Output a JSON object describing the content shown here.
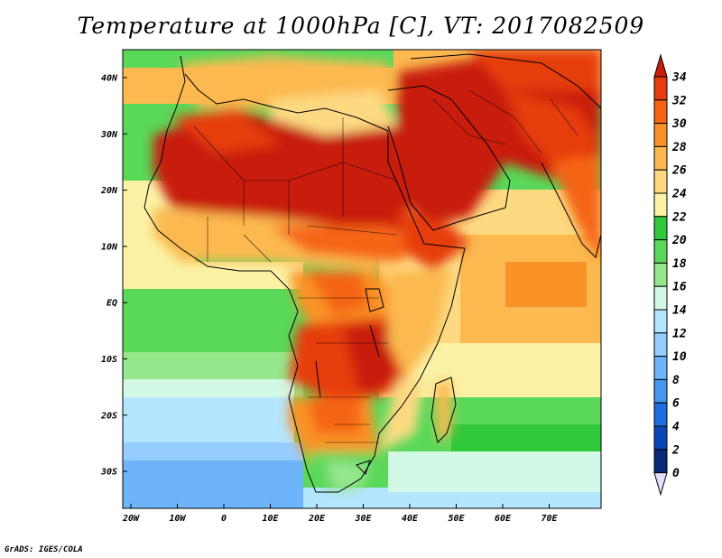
{
  "title": "Temperature at 1000hPa [C], VT: 2017082509",
  "credit": "GrADS: IGES/COLA",
  "axes": {
    "lon_labels": [
      "20W",
      "10W",
      "0",
      "10E",
      "20E",
      "30E",
      "40E",
      "50E",
      "60E",
      "70E"
    ],
    "lat_labels": [
      "40N",
      "30N",
      "20N",
      "10N",
      "EQ",
      "10S",
      "20S",
      "30S"
    ]
  },
  "colorbar": {
    "labels": [
      "34",
      "32",
      "30",
      "28",
      "26",
      "24",
      "22",
      "20",
      "18",
      "16",
      "14",
      "12",
      "10",
      "8",
      "6",
      "4",
      "2",
      "0"
    ],
    "colors": [
      "#c81e0a",
      "#e63c0e",
      "#f56514",
      "#f99328",
      "#fbb950",
      "#fdda82",
      "#fbf2a6",
      "#32c83c",
      "#5ad85a",
      "#96e68c",
      "#d2f8e6",
      "#b4e6ff",
      "#96cdff",
      "#6eb4fa",
      "#4696f0",
      "#1e6ee1",
      "#0a46b4",
      "#082878"
    ],
    "top_arrow_color": "#c81e0a",
    "bottom_arrow_color": "#e8dcff"
  }
}
